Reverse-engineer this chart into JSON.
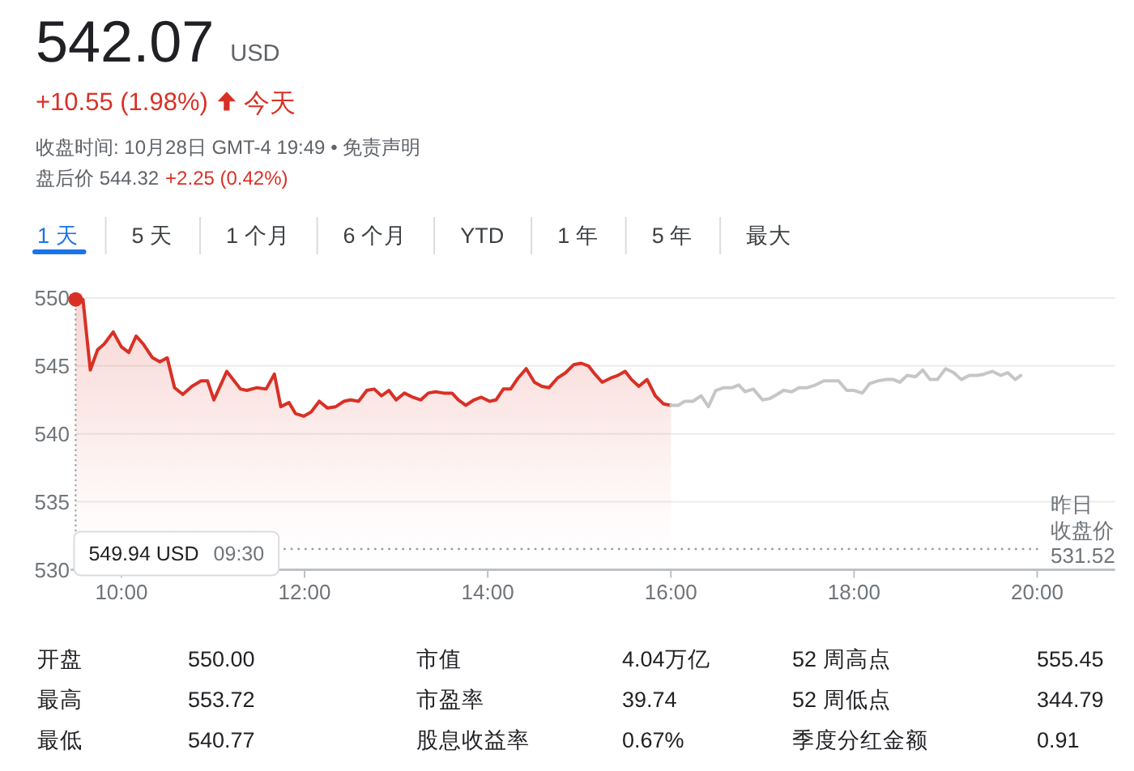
{
  "chart_data": [
    {
      "type": "other",
      "title": "542.07",
      "subtitle": "USD",
      "annotations": [
        "+10.55 (1.98%)",
        "今天",
        "收盘时间: 10月28日 GMT-4 19:49 • 免责声明",
        "盘后价 544.32",
        "+2.25 (0.42%)",
        "1 天",
        "5 天",
        "1 个月",
        "6 个月",
        "YTD",
        "1 年",
        "5 年",
        "最大"
      ]
    },
    {
      "type": "line",
      "xlim": [
        9.5,
        20.85
      ],
      "ylim": [
        530,
        550
      ],
      "xticks": [
        {
          "value": 10,
          "label": "10:00"
        },
        {
          "value": 12,
          "label": "12:00"
        },
        {
          "value": 14,
          "label": "14:00"
        },
        {
          "value": 16,
          "label": "16:00"
        },
        {
          "value": 18,
          "label": "18:00"
        },
        {
          "value": 20,
          "label": "20:00"
        }
      ],
      "yticks": [
        530,
        535,
        540,
        545,
        550
      ],
      "grid": "y",
      "series": [
        {
          "type": "area",
          "color": "#d93025",
          "x": [
            9.5,
            9.58,
            9.66,
            9.74,
            9.81,
            9.91,
            10.0,
            10.08,
            10.16,
            10.24,
            10.34,
            10.42,
            10.5,
            10.58,
            10.67,
            10.77,
            10.87,
            10.94,
            11.01,
            11.15,
            11.3,
            11.37,
            11.48,
            11.58,
            11.67,
            11.74,
            11.83,
            11.9,
            11.99,
            12.07,
            12.16,
            12.25,
            12.34,
            12.43,
            12.5,
            12.59,
            12.68,
            12.76,
            12.84,
            12.92,
            13.0,
            13.09,
            13.18,
            13.27,
            13.35,
            13.43,
            13.52,
            13.61,
            13.68,
            13.76,
            13.85,
            13.93,
            14.02,
            14.09,
            14.17,
            14.25,
            14.33,
            14.42,
            14.51,
            14.59,
            14.67,
            14.76,
            14.85,
            14.94,
            15.02,
            15.1,
            15.17,
            15.25,
            15.34,
            15.42,
            15.5,
            15.57,
            15.65,
            15.74,
            15.83,
            15.92,
            16.0
          ],
          "values": [
            549.9,
            549.9,
            544.7,
            546.2,
            546.6,
            547.5,
            546.4,
            546.0,
            547.2,
            546.6,
            545.6,
            545.3,
            545.6,
            543.4,
            542.9,
            543.5,
            543.9,
            543.9,
            542.5,
            544.6,
            543.3,
            543.2,
            543.4,
            543.3,
            544.4,
            542.0,
            542.3,
            541.5,
            541.3,
            541.6,
            542.4,
            541.9,
            542.0,
            542.4,
            542.5,
            542.4,
            543.2,
            543.3,
            542.8,
            543.2,
            542.5,
            543.0,
            542.7,
            542.5,
            543.0,
            543.1,
            543.0,
            543.0,
            542.5,
            542.1,
            542.5,
            542.7,
            542.4,
            542.5,
            543.3,
            543.3,
            544.1,
            544.8,
            543.8,
            543.5,
            543.4,
            544.1,
            544.5,
            545.1,
            545.2,
            545.0,
            544.4,
            543.8,
            544.1,
            544.3,
            544.6,
            544.0,
            543.5,
            544.0,
            542.8,
            542.2,
            542.1
          ]
        },
        {
          "type": "line",
          "color": "#c6c6c6",
          "x": [
            16.0,
            16.08,
            16.15,
            16.24,
            16.33,
            16.41,
            16.49,
            16.58,
            16.67,
            16.74,
            16.81,
            16.9,
            17.0,
            17.08,
            17.16,
            17.23,
            17.32,
            17.4,
            17.49,
            17.58,
            17.67,
            17.74,
            17.83,
            17.92,
            18.0,
            18.09,
            18.17,
            18.26,
            18.35,
            18.43,
            18.5,
            18.58,
            18.67,
            18.75,
            18.83,
            18.91,
            19.0,
            19.09,
            19.17,
            19.26,
            19.35,
            19.42,
            19.51,
            19.6,
            19.68,
            19.76,
            19.82
          ],
          "values": [
            542.1,
            542.1,
            542.4,
            542.4,
            542.8,
            542.0,
            543.2,
            543.4,
            543.4,
            543.6,
            543.1,
            543.3,
            542.5,
            542.6,
            542.9,
            543.2,
            543.1,
            543.4,
            543.4,
            543.6,
            543.9,
            543.9,
            543.9,
            543.2,
            543.2,
            543.0,
            543.7,
            543.9,
            544.0,
            544.0,
            543.8,
            544.3,
            544.2,
            544.7,
            544.0,
            544.0,
            544.8,
            544.5,
            544.0,
            544.3,
            544.3,
            544.4,
            544.6,
            544.3,
            544.5,
            544.0,
            544.3
          ]
        }
      ],
      "ref_lines": [
        {
          "axis": "y",
          "value": 531.52,
          "label": "昨日收盘价 531.52",
          "line_style": "dotted",
          "color": "#9aa0a6"
        }
      ],
      "annotations": [
        "549.94 USD",
        "09:30"
      ]
    },
    {
      "type": "other",
      "annotations": [
        "开盘",
        "550.00",
        "市值",
        "4.04万亿",
        "52 周高点",
        "555.45",
        "最高",
        "553.72",
        "市盈率",
        "39.74",
        "52 周低点",
        "344.79",
        "最低",
        "540.77",
        "股息收益率",
        "0.67%",
        "季度分红金额",
        "0.91"
      ]
    }
  ]
}
